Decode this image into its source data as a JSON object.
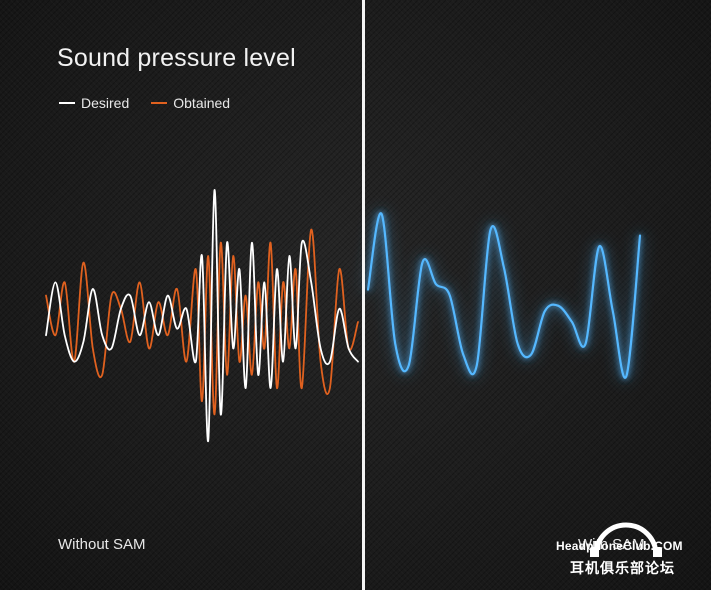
{
  "chart_data": {
    "type": "line",
    "title": "Sound pressure level",
    "xlabel": "",
    "ylabel": "",
    "grid": false,
    "legend": {
      "placement": "top-left",
      "entries": [
        "Desired",
        "Obtained"
      ]
    },
    "colors": {
      "desired": "#ffffff",
      "obtained": "#e0611f",
      "with_sam": "#55b8ff"
    },
    "panels": [
      {
        "name": "Without SAM",
        "series": [
          {
            "name": "Desired",
            "x": [
              0,
              0.03,
              0.06,
              0.09,
              0.12,
              0.15,
              0.18,
              0.21,
              0.24,
              0.27,
              0.3,
              0.33,
              0.36,
              0.39,
              0.42,
              0.45,
              0.48,
              0.5,
              0.52,
              0.54,
              0.56,
              0.58,
              0.6,
              0.62,
              0.64,
              0.66,
              0.68,
              0.7,
              0.72,
              0.74,
              0.76,
              0.78,
              0.8,
              0.82,
              0.85,
              0.88,
              0.91,
              0.94,
              0.97,
              1.0
            ],
            "values": [
              -0.1,
              0.3,
              -0.1,
              -0.3,
              -0.15,
              0.25,
              -0.1,
              -0.2,
              0.1,
              0.2,
              -0.1,
              0.15,
              -0.1,
              0.2,
              -0.05,
              0.1,
              -0.3,
              0.5,
              -0.9,
              1.0,
              -0.7,
              0.6,
              -0.2,
              0.4,
              -0.5,
              0.6,
              -0.4,
              0.3,
              -0.5,
              0.4,
              -0.3,
              0.5,
              -0.2,
              0.6,
              0.3,
              -0.2,
              -0.3,
              0.1,
              -0.2,
              -0.3
            ]
          },
          {
            "name": "Obtained",
            "x": [
              0,
              0.03,
              0.06,
              0.09,
              0.12,
              0.15,
              0.18,
              0.21,
              0.24,
              0.27,
              0.3,
              0.33,
              0.36,
              0.39,
              0.42,
              0.45,
              0.48,
              0.5,
              0.52,
              0.54,
              0.56,
              0.58,
              0.6,
              0.62,
              0.64,
              0.66,
              0.68,
              0.7,
              0.72,
              0.74,
              0.76,
              0.78,
              0.8,
              0.82,
              0.85,
              0.88,
              0.91,
              0.94,
              0.97,
              1.0
            ],
            "values": [
              0.2,
              -0.1,
              0.3,
              -0.3,
              0.45,
              -0.2,
              -0.4,
              0.2,
              0.1,
              -0.15,
              0.3,
              -0.2,
              0.15,
              -0.1,
              0.25,
              -0.3,
              0.4,
              -0.6,
              0.5,
              -0.7,
              0.6,
              -0.4,
              0.5,
              -0.3,
              0.2,
              -0.4,
              0.3,
              -0.2,
              0.6,
              -0.5,
              0.3,
              -0.2,
              0.4,
              -0.5,
              0.7,
              -0.3,
              -0.5,
              0.4,
              -0.2,
              0.0
            ]
          }
        ]
      },
      {
        "name": "With SAM",
        "series": [
          {
            "name": "Obtained",
            "x": [
              0,
              0.05,
              0.1,
              0.15,
              0.2,
              0.25,
              0.3,
              0.35,
              0.4,
              0.45,
              0.5,
              0.55,
              0.6,
              0.65,
              0.7,
              0.75,
              0.8,
              0.85,
              0.9,
              0.95,
              1.0
            ],
            "values": [
              0.3,
              1.0,
              -0.2,
              -0.4,
              0.55,
              0.35,
              0.25,
              -0.3,
              -0.4,
              0.85,
              0.5,
              -0.2,
              -0.3,
              0.1,
              0.15,
              0.0,
              -0.2,
              0.7,
              0.1,
              -0.5,
              0.8
            ]
          }
        ]
      }
    ]
  },
  "watermark": {
    "line1": "HeadphoneClub.COM",
    "line2": "耳机俱乐部论坛"
  }
}
